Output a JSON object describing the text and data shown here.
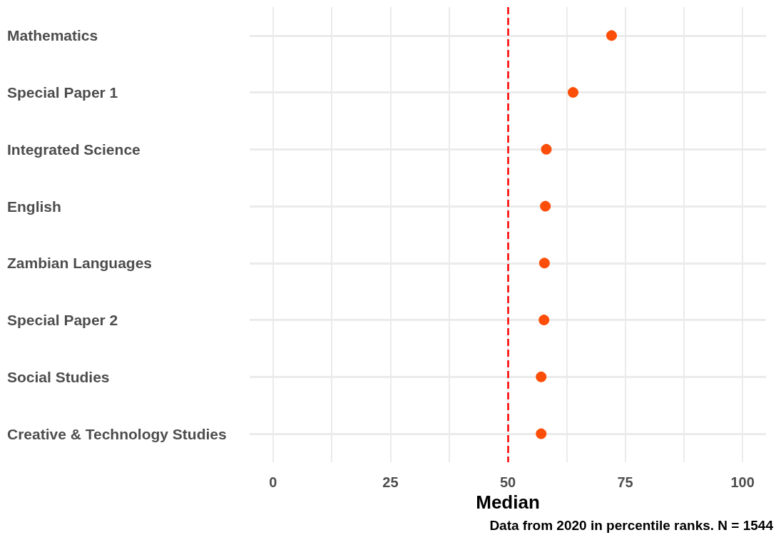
{
  "chart_data": {
    "type": "scatter",
    "categories": [
      "Mathematics",
      "Special Paper 1",
      "Integrated Science",
      "English",
      "Zambian Languages",
      "Special Paper 2",
      "Social Studies",
      "Creative & Technology Studies"
    ],
    "orientation": "horizontal",
    "values": [
      72.1,
      63.9,
      58.2,
      58.0,
      57.8,
      57.7,
      57.1,
      57.1
    ],
    "color": "#fc4e08",
    "marker": "circle",
    "xlabel": "Median",
    "xlim": [
      -5,
      105
    ],
    "xticks": [
      0,
      {
        "value": 12.5,
        "label": null
      },
      25,
      {
        "value": 37.5,
        "label": null
      },
      50,
      {
        "value": 62.5,
        "label": null
      },
      75,
      {
        "value": 87.5,
        "label": null
      },
      100
    ],
    "grid": true,
    "ref_lines": [
      {
        "axis": "x",
        "value": 50,
        "label": null,
        "color": "#ff0000",
        "line_style": "dashed"
      }
    ],
    "annotations": [
      "Data from 2020 in percentile ranks. N = 1544"
    ]
  }
}
